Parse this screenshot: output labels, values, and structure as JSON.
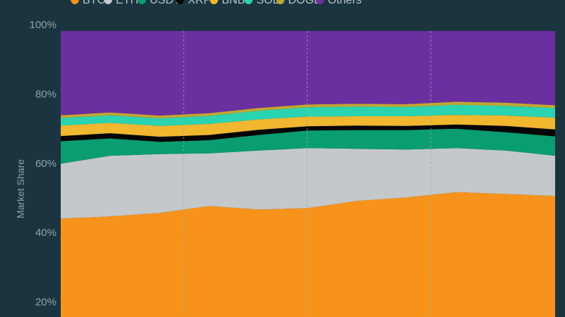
{
  "chart_data": {
    "type": "area",
    "stacked": true,
    "normalized": true,
    "title": "",
    "xlabel": "",
    "ylabel": "Market Share",
    "ylim": [
      0,
      100
    ],
    "yticks": [
      "20%",
      "40%",
      "60%",
      "80%",
      "100%"
    ],
    "ytick_values": [
      20,
      40,
      60,
      80,
      100
    ],
    "grid": "vertical dashed lines",
    "legend": "top",
    "background": "#1a3540",
    "series": [
      {
        "name": "BTC",
        "color": "#f7931a",
        "values": [
          45.9,
          46.5,
          47.5,
          49.5,
          48.5,
          48.9,
          51.0,
          52.0,
          53.5,
          53.0,
          52.4
        ]
      },
      {
        "name": "ETH",
        "color": "#c4c8cb",
        "values": [
          15.8,
          17.5,
          17.0,
          15.2,
          17.0,
          17.3,
          15.0,
          13.8,
          12.7,
          12.5,
          11.6
        ]
      },
      {
        "name": "USDT",
        "color": "#0a9d72",
        "values": [
          6.5,
          5.0,
          3.5,
          3.8,
          4.5,
          5.1,
          5.4,
          5.6,
          5.6,
          5.3,
          5.6
        ]
      },
      {
        "name": "XRP",
        "color": "#050505",
        "values": [
          1.5,
          1.5,
          1.5,
          1.5,
          1.5,
          1.2,
          1.3,
          1.2,
          1.2,
          1.8,
          2.0
        ]
      },
      {
        "name": "BNB",
        "color": "#f0b72f",
        "values": [
          3.0,
          3.0,
          3.1,
          3.2,
          3.0,
          2.8,
          2.7,
          2.8,
          2.8,
          3.0,
          3.4
        ]
      },
      {
        "name": "SOL",
        "color": "#2ad4b0",
        "values": [
          2.2,
          2.2,
          2.2,
          2.3,
          2.5,
          2.7,
          2.8,
          2.7,
          2.9,
          2.8,
          2.8
        ]
      },
      {
        "name": "DOGE",
        "color": "#c2a633",
        "values": [
          0.8,
          0.8,
          0.8,
          0.8,
          0.8,
          0.8,
          0.8,
          0.8,
          0.9,
          0.9,
          0.8
        ]
      },
      {
        "name": "Others",
        "color": "#6b2fa0",
        "values": [
          24.3,
          23.5,
          24.4,
          23.7,
          22.2,
          21.2,
          21.0,
          21.1,
          20.4,
          20.7,
          21.4
        ]
      }
    ]
  }
}
